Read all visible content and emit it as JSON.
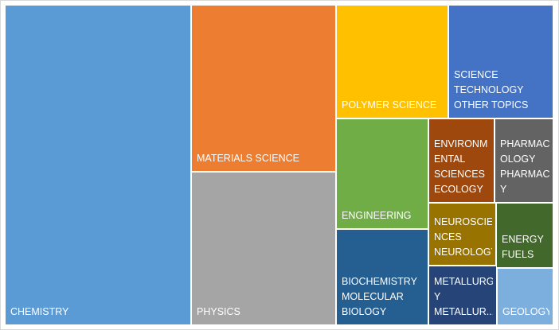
{
  "chart_data": {
    "type": "treemap",
    "title": "",
    "items": [
      {
        "name": "chemistry",
        "lines": [
          "CHEMISTRY"
        ],
        "value": 1800,
        "color": "#5b9bd5"
      },
      {
        "name": "materials-science",
        "lines": [
          "MATERIALS SCIENCE"
        ],
        "value": 655,
        "color": "#ed7d31"
      },
      {
        "name": "physics",
        "lines": [
          "PHYSICS"
        ],
        "value": 590,
        "color": "#a5a5a5"
      },
      {
        "name": "polymer-science",
        "lines": [
          "POLYMER SCIENCE"
        ],
        "value": 238,
        "color": "#ffc000"
      },
      {
        "name": "science-technology-other-topics",
        "lines": [
          "SCIENCE",
          "TECHNOLOGY",
          "OTHER TOPICS"
        ],
        "value": 222,
        "color": "#4472c4"
      },
      {
        "name": "engineering",
        "lines": [
          "ENGINEERING"
        ],
        "value": 230,
        "color": "#70ad47"
      },
      {
        "name": "environmental-sciences-ecology",
        "lines": [
          "ENVIRONM",
          "ENTAL",
          "SCIENCES",
          "ECOLOGY"
        ],
        "value": 155,
        "color": "#9e480e"
      },
      {
        "name": "pharmacology-pharmacy",
        "lines": [
          "PHARMAC",
          "OLOGY",
          "PHARMAC",
          "Y"
        ],
        "value": 127,
        "color": "#636363"
      },
      {
        "name": "biochemistry-molecular-biology",
        "lines": [
          "BIOCHEMISTRY",
          "MOLECULAR",
          "BIOLOGY"
        ],
        "value": 195,
        "color": "#255e91"
      },
      {
        "name": "neurosciences-neurology",
        "lines": [
          "NEUROSCIE",
          "NCES",
          "NEUROLOGY"
        ],
        "value": 128,
        "color": "#997300"
      },
      {
        "name": "energy-fuels",
        "lines": [
          "ENERGY",
          "FUELS"
        ],
        "value": 102,
        "color": "#43682b"
      },
      {
        "name": "metallurgy-metallurgical-engineering",
        "lines": [
          "METALLURG",
          "Y",
          "METALLUR..."
        ],
        "value": 105,
        "color": "#264478"
      },
      {
        "name": "geology",
        "lines": [
          "GEOLOGY"
        ],
        "value": 85,
        "color": "#7cafdd"
      }
    ]
  }
}
